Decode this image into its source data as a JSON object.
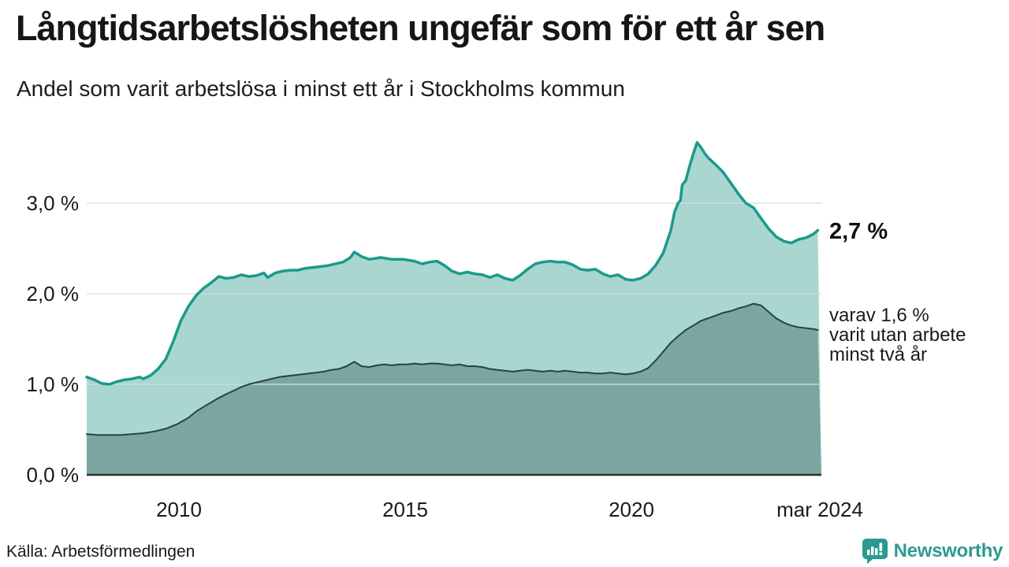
{
  "title": "Långtidsarbetslösheten ungefär som för ett år sen",
  "subtitle": "Andel som varit arbetslösa i minst ett år i Stockholms kommun",
  "source": "Källa: Arbetsförmedlingen",
  "brand": {
    "name": "Newsworthy",
    "color": "#2f9a8f",
    "icon": "newsworthy-speech-bubble-bar-chart-icon",
    "icon_color": "#2a9a8f"
  },
  "annotations": {
    "latest_total": "2,7 %",
    "secondary_lines": [
      "varav 1,6 %",
      "varit utan arbete",
      "minst två år"
    ]
  },
  "chart_data": {
    "type": "area",
    "title": "Långtidsarbetslösheten ungefär som för ett år sen",
    "subtitle": "Andel som varit arbetslösa i minst ett år i Stockholms kommun",
    "grid": true,
    "colors": {
      "gridline": "#d7dae1",
      "baseline": "#2f2f2f",
      "background": "#ffffff"
    },
    "x_axis": {
      "range": [
        2008.0,
        2024.25
      ],
      "ticks": [
        {
          "label": "2010",
          "year": 2010
        },
        {
          "label": "2015",
          "year": 2015
        },
        {
          "label": "2020",
          "year": 2020
        },
        {
          "label": "mar 2024",
          "year": 2024.17
        }
      ]
    },
    "y_axis": {
      "range": [
        0,
        3.8
      ],
      "unit": "%",
      "gridline_values": [
        1,
        2,
        3
      ],
      "ticks": [
        {
          "label": "3,0 %",
          "value": 3.0
        },
        {
          "label": "2,0 %",
          "value": 2.0
        },
        {
          "label": "1,0 %",
          "value": 1.0
        },
        {
          "label": "0,0 %",
          "value": 0.0
        }
      ]
    },
    "series": [
      {
        "name": "Andel arbetslösa minst ett år",
        "latest_value_label": "2,7 %",
        "line_color": "#1a9a8b",
        "fill_color": "#a9d6d0",
        "line_width": 3.5,
        "points": [
          [
            2008.0,
            1.08
          ],
          [
            2008.17,
            1.05
          ],
          [
            2008.33,
            1.01
          ],
          [
            2008.5,
            1.0
          ],
          [
            2008.67,
            1.03
          ],
          [
            2008.83,
            1.05
          ],
          [
            2009.0,
            1.06
          ],
          [
            2009.17,
            1.08
          ],
          [
            2009.25,
            1.06
          ],
          [
            2009.42,
            1.1
          ],
          [
            2009.58,
            1.17
          ],
          [
            2009.75,
            1.28
          ],
          [
            2009.92,
            1.48
          ],
          [
            2010.08,
            1.7
          ],
          [
            2010.25,
            1.86
          ],
          [
            2010.42,
            1.98
          ],
          [
            2010.58,
            2.06
          ],
          [
            2010.75,
            2.12
          ],
          [
            2010.92,
            2.19
          ],
          [
            2011.08,
            2.17
          ],
          [
            2011.25,
            2.18
          ],
          [
            2011.42,
            2.21
          ],
          [
            2011.58,
            2.19
          ],
          [
            2011.75,
            2.2
          ],
          [
            2011.92,
            2.23
          ],
          [
            2012.0,
            2.18
          ],
          [
            2012.17,
            2.23
          ],
          [
            2012.33,
            2.25
          ],
          [
            2012.5,
            2.26
          ],
          [
            2012.67,
            2.26
          ],
          [
            2012.83,
            2.28
          ],
          [
            2013.0,
            2.29
          ],
          [
            2013.17,
            2.3
          ],
          [
            2013.33,
            2.31
          ],
          [
            2013.5,
            2.33
          ],
          [
            2013.67,
            2.35
          ],
          [
            2013.83,
            2.4
          ],
          [
            2013.92,
            2.46
          ],
          [
            2014.08,
            2.41
          ],
          [
            2014.25,
            2.38
          ],
          [
            2014.5,
            2.4
          ],
          [
            2014.75,
            2.38
          ],
          [
            2015.0,
            2.38
          ],
          [
            2015.25,
            2.36
          ],
          [
            2015.42,
            2.33
          ],
          [
            2015.58,
            2.35
          ],
          [
            2015.75,
            2.36
          ],
          [
            2015.92,
            2.31
          ],
          [
            2016.08,
            2.25
          ],
          [
            2016.25,
            2.22
          ],
          [
            2016.42,
            2.24
          ],
          [
            2016.58,
            2.22
          ],
          [
            2016.75,
            2.21
          ],
          [
            2016.92,
            2.18
          ],
          [
            2017.08,
            2.21
          ],
          [
            2017.25,
            2.17
          ],
          [
            2017.42,
            2.15
          ],
          [
            2017.58,
            2.2
          ],
          [
            2017.75,
            2.27
          ],
          [
            2017.92,
            2.33
          ],
          [
            2018.08,
            2.35
          ],
          [
            2018.25,
            2.36
          ],
          [
            2018.42,
            2.35
          ],
          [
            2018.58,
            2.35
          ],
          [
            2018.75,
            2.32
          ],
          [
            2018.92,
            2.27
          ],
          [
            2019.08,
            2.26
          ],
          [
            2019.25,
            2.27
          ],
          [
            2019.42,
            2.22
          ],
          [
            2019.58,
            2.19
          ],
          [
            2019.75,
            2.21
          ],
          [
            2019.92,
            2.16
          ],
          [
            2020.08,
            2.15
          ],
          [
            2020.25,
            2.17
          ],
          [
            2020.42,
            2.22
          ],
          [
            2020.58,
            2.31
          ],
          [
            2020.75,
            2.45
          ],
          [
            2020.92,
            2.7
          ],
          [
            2021.0,
            2.9
          ],
          [
            2021.08,
            3.0
          ],
          [
            2021.13,
            3.03
          ],
          [
            2021.17,
            3.2
          ],
          [
            2021.25,
            3.25
          ],
          [
            2021.33,
            3.4
          ],
          [
            2021.42,
            3.55
          ],
          [
            2021.5,
            3.67
          ],
          [
            2021.58,
            3.62
          ],
          [
            2021.67,
            3.55
          ],
          [
            2021.75,
            3.5
          ],
          [
            2021.92,
            3.42
          ],
          [
            2022.0,
            3.38
          ],
          [
            2022.08,
            3.34
          ],
          [
            2022.25,
            3.22
          ],
          [
            2022.42,
            3.1
          ],
          [
            2022.58,
            3.0
          ],
          [
            2022.75,
            2.95
          ],
          [
            2022.92,
            2.83
          ],
          [
            2023.08,
            2.72
          ],
          [
            2023.25,
            2.63
          ],
          [
            2023.42,
            2.58
          ],
          [
            2023.58,
            2.56
          ],
          [
            2023.75,
            2.6
          ],
          [
            2023.92,
            2.62
          ],
          [
            2024.08,
            2.66
          ],
          [
            2024.17,
            2.7
          ]
        ]
      },
      {
        "name": "varav arbetslösa minst två år",
        "latest_value_label": "1,6 %",
        "line_color": "#26443f",
        "fill_color": "#7aa69f",
        "line_width": 2,
        "points": [
          [
            2008.0,
            0.45
          ],
          [
            2008.25,
            0.44
          ],
          [
            2008.5,
            0.44
          ],
          [
            2008.75,
            0.44
          ],
          [
            2009.0,
            0.45
          ],
          [
            2009.25,
            0.46
          ],
          [
            2009.5,
            0.48
          ],
          [
            2009.75,
            0.51
          ],
          [
            2010.0,
            0.56
          ],
          [
            2010.25,
            0.63
          ],
          [
            2010.42,
            0.7
          ],
          [
            2010.58,
            0.75
          ],
          [
            2010.75,
            0.8
          ],
          [
            2010.92,
            0.85
          ],
          [
            2011.08,
            0.89
          ],
          [
            2011.25,
            0.93
          ],
          [
            2011.42,
            0.97
          ],
          [
            2011.58,
            1.0
          ],
          [
            2011.75,
            1.02
          ],
          [
            2011.92,
            1.04
          ],
          [
            2012.08,
            1.06
          ],
          [
            2012.25,
            1.08
          ],
          [
            2012.42,
            1.09
          ],
          [
            2012.58,
            1.1
          ],
          [
            2012.75,
            1.11
          ],
          [
            2012.92,
            1.12
          ],
          [
            2013.08,
            1.13
          ],
          [
            2013.25,
            1.14
          ],
          [
            2013.42,
            1.16
          ],
          [
            2013.58,
            1.17
          ],
          [
            2013.75,
            1.2
          ],
          [
            2013.92,
            1.25
          ],
          [
            2014.08,
            1.2
          ],
          [
            2014.25,
            1.19
          ],
          [
            2014.42,
            1.21
          ],
          [
            2014.58,
            1.22
          ],
          [
            2014.75,
            1.21
          ],
          [
            2014.92,
            1.22
          ],
          [
            2015.08,
            1.22
          ],
          [
            2015.25,
            1.23
          ],
          [
            2015.42,
            1.22
          ],
          [
            2015.58,
            1.23
          ],
          [
            2015.75,
            1.23
          ],
          [
            2015.92,
            1.22
          ],
          [
            2016.08,
            1.21
          ],
          [
            2016.25,
            1.22
          ],
          [
            2016.42,
            1.2
          ],
          [
            2016.58,
            1.2
          ],
          [
            2016.75,
            1.19
          ],
          [
            2016.92,
            1.17
          ],
          [
            2017.08,
            1.16
          ],
          [
            2017.25,
            1.15
          ],
          [
            2017.42,
            1.14
          ],
          [
            2017.58,
            1.15
          ],
          [
            2017.75,
            1.16
          ],
          [
            2017.92,
            1.15
          ],
          [
            2018.08,
            1.14
          ],
          [
            2018.25,
            1.15
          ],
          [
            2018.42,
            1.14
          ],
          [
            2018.58,
            1.15
          ],
          [
            2018.75,
            1.14
          ],
          [
            2018.92,
            1.13
          ],
          [
            2019.08,
            1.13
          ],
          [
            2019.25,
            1.12
          ],
          [
            2019.42,
            1.12
          ],
          [
            2019.58,
            1.13
          ],
          [
            2019.75,
            1.12
          ],
          [
            2019.92,
            1.11
          ],
          [
            2020.08,
            1.12
          ],
          [
            2020.25,
            1.14
          ],
          [
            2020.42,
            1.18
          ],
          [
            2020.58,
            1.26
          ],
          [
            2020.75,
            1.36
          ],
          [
            2020.92,
            1.46
          ],
          [
            2021.08,
            1.53
          ],
          [
            2021.25,
            1.6
          ],
          [
            2021.42,
            1.65
          ],
          [
            2021.58,
            1.7
          ],
          [
            2021.75,
            1.73
          ],
          [
            2021.92,
            1.76
          ],
          [
            2022.08,
            1.79
          ],
          [
            2022.25,
            1.81
          ],
          [
            2022.42,
            1.84
          ],
          [
            2022.58,
            1.86
          ],
          [
            2022.75,
            1.89
          ],
          [
            2022.92,
            1.87
          ],
          [
            2023.08,
            1.8
          ],
          [
            2023.25,
            1.73
          ],
          [
            2023.42,
            1.68
          ],
          [
            2023.58,
            1.65
          ],
          [
            2023.75,
            1.63
          ],
          [
            2023.92,
            1.62
          ],
          [
            2024.08,
            1.61
          ],
          [
            2024.17,
            1.6
          ]
        ]
      }
    ]
  }
}
